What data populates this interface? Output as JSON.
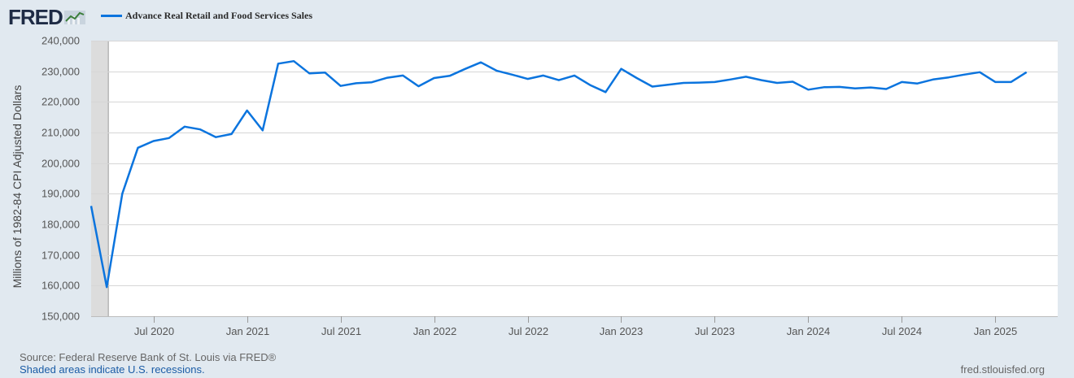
{
  "header": {
    "logo_text": "FRED",
    "logo_icon": "fred-chart-icon"
  },
  "colors": {
    "line": "#0b74de",
    "recession": "#dcdcdc",
    "grid": "#d6d6d6",
    "background": "#e1e9f0",
    "plot": "#ffffff"
  },
  "chart_data": {
    "type": "line",
    "title": "",
    "ylabel": "Millions of 1982-84 CPI Adjusted Dollars",
    "xlabel": "",
    "ylim": [
      150000,
      240000
    ],
    "yticks": [
      150000,
      160000,
      170000,
      180000,
      190000,
      200000,
      210000,
      220000,
      230000,
      240000
    ],
    "ytick_labels": [
      "150,000",
      "160,000",
      "170,000",
      "180,000",
      "190,000",
      "200,000",
      "210,000",
      "220,000",
      "230,000",
      "240,000"
    ],
    "xlim": [
      "2020-03",
      "2025-05"
    ],
    "xticks": [
      "2020-07",
      "2021-01",
      "2021-07",
      "2022-01",
      "2022-07",
      "2023-01",
      "2023-07",
      "2024-01",
      "2024-07",
      "2025-01"
    ],
    "xtick_labels": [
      "Jul 2020",
      "Jan 2021",
      "Jul 2021",
      "Jan 2022",
      "Jul 2022",
      "Jan 2023",
      "Jul 2023",
      "Jan 2024",
      "Jul 2024",
      "Jan 2025"
    ],
    "legend_position": "top-left",
    "grid": true,
    "recessions": [
      {
        "start": "2020-03",
        "end": "2020-04"
      }
    ],
    "series": [
      {
        "name": "Advance Real Retail and Food Services Sales",
        "x": [
          "2020-03",
          "2020-04",
          "2020-05",
          "2020-06",
          "2020-07",
          "2020-08",
          "2020-09",
          "2020-10",
          "2020-11",
          "2020-12",
          "2021-01",
          "2021-02",
          "2021-03",
          "2021-04",
          "2021-05",
          "2021-06",
          "2021-07",
          "2021-08",
          "2021-09",
          "2021-10",
          "2021-11",
          "2021-12",
          "2022-01",
          "2022-02",
          "2022-03",
          "2022-04",
          "2022-05",
          "2022-06",
          "2022-07",
          "2022-08",
          "2022-09",
          "2022-10",
          "2022-11",
          "2022-12",
          "2023-01",
          "2023-02",
          "2023-03",
          "2023-04",
          "2023-05",
          "2023-06",
          "2023-07",
          "2023-08",
          "2023-09",
          "2023-10",
          "2023-11",
          "2023-12",
          "2024-01",
          "2024-02",
          "2024-03",
          "2024-04",
          "2024-05",
          "2024-06",
          "2024-07",
          "2024-08",
          "2024-09",
          "2024-10",
          "2024-11",
          "2024-12",
          "2025-01",
          "2025-02",
          "2025-03"
        ],
        "values": [
          186000,
          159500,
          190000,
          205000,
          207200,
          208200,
          211900,
          211000,
          208500,
          209500,
          217200,
          210700,
          232500,
          233300,
          229300,
          229600,
          225200,
          226100,
          226400,
          227900,
          228600,
          225100,
          227800,
          228500,
          230800,
          232900,
          230200,
          228900,
          227500,
          228600,
          227100,
          228600,
          225500,
          223200,
          230800,
          227800,
          225000,
          225600,
          226200,
          226300,
          226500,
          227300,
          228200,
          227100,
          226200,
          226600,
          224000,
          224800,
          224900,
          224400,
          224700,
          224200,
          226500,
          226000,
          227300,
          228000,
          228900,
          229700,
          226500,
          226500,
          229700
        ]
      }
    ]
  },
  "footer": {
    "source": "Source: Federal Reserve Bank of St. Louis via FRED®",
    "note": "Shaded areas indicate U.S. recessions.",
    "url": "fred.stlouisfed.org"
  }
}
